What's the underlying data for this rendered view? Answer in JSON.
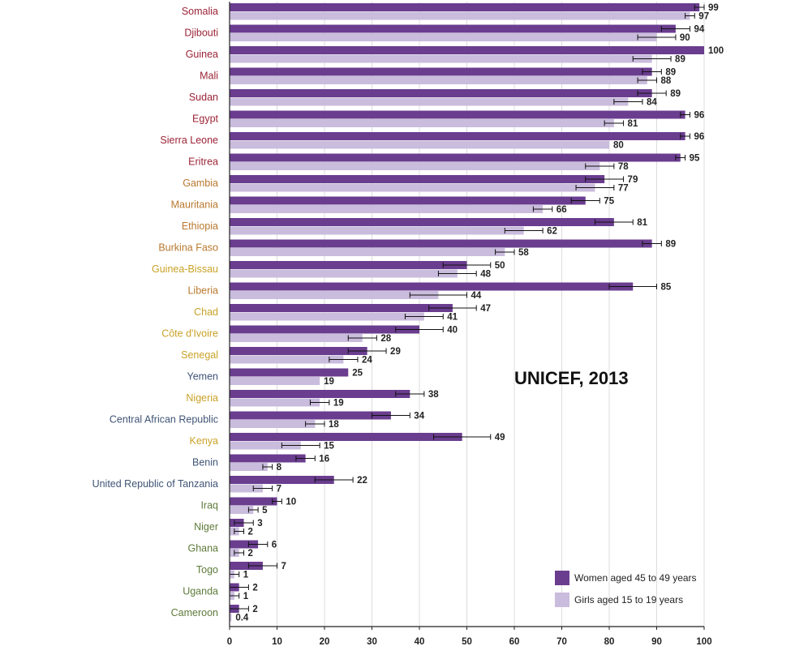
{
  "chart_data": {
    "type": "bar",
    "orientation": "horizontal",
    "source_note": "UNICEF, 2013",
    "categories": [
      "Somalia",
      "Djibouti",
      "Guinea",
      "Mali",
      "Sudan",
      "Egypt",
      "Sierra Leone",
      "Eritrea",
      "Gambia",
      "Mauritania",
      "Ethiopia",
      "Burkina Faso",
      "Guinea-Bissau",
      "Liberia",
      "Chad",
      "Côte d'Ivoire",
      "Senegal",
      "Yemen",
      "Nigeria",
      "Central African Republic",
      "Kenya",
      "Benin",
      "United Republic of Tanzania",
      "Iraq",
      "Niger",
      "Ghana",
      "Togo",
      "Uganda",
      "Cameroon"
    ],
    "category_colors": [
      "#9b2335",
      "#9b2335",
      "#9b2335",
      "#9b2335",
      "#9b2335",
      "#9b2335",
      "#9b2335",
      "#9b2335",
      "#b9782e",
      "#b9782e",
      "#b9782e",
      "#b9782e",
      "#c9a227",
      "#b9782e",
      "#c9a227",
      "#c9a227",
      "#c9a227",
      "#3f5475",
      "#c9a227",
      "#3f5475",
      "#c9a227",
      "#3f5475",
      "#3f5475",
      "#5e7a3a",
      "#5e7a3a",
      "#5e7a3a",
      "#5e7a3a",
      "#5e7a3a",
      "#5e7a3a"
    ],
    "series": [
      {
        "name": "Women aged 45 to 49 years",
        "color": "#6a3d8f",
        "values": [
          99,
          94,
          100,
          89,
          89,
          96,
          96,
          95,
          79,
          75,
          81,
          89,
          50,
          85,
          47,
          40,
          29,
          25,
          38,
          34,
          49,
          16,
          22,
          10,
          3,
          6,
          7,
          2,
          2
        ],
        "labels": [
          "99",
          "94",
          "100",
          "89",
          "89",
          "96",
          "96",
          "95",
          "79",
          "75",
          "81",
          "89",
          "50",
          "85",
          "47",
          "40",
          "29",
          "25",
          "38",
          "34",
          "49",
          "16",
          "22",
          "10",
          "3",
          "6",
          "7",
          "2",
          "2"
        ],
        "err": [
          1,
          3,
          0,
          2,
          3,
          1,
          1,
          1,
          4,
          3,
          4,
          2,
          5,
          5,
          5,
          5,
          4,
          0,
          3,
          4,
          6,
          2,
          4,
          1,
          2,
          2,
          3,
          2,
          2
        ]
      },
      {
        "name": "Girls aged 15 to 19 years",
        "color": "#c9bcdc",
        "values": [
          97,
          90,
          89,
          88,
          84,
          81,
          80,
          78,
          77,
          66,
          62,
          58,
          48,
          44,
          41,
          28,
          24,
          19,
          19,
          18,
          15,
          8,
          7,
          5,
          2,
          2,
          1,
          1,
          0.4
        ],
        "labels": [
          "97",
          "90",
          "89",
          "88",
          "84",
          "81",
          "80",
          "78",
          "77",
          "66",
          "62",
          "58",
          "48",
          "44",
          "41",
          "28",
          "24",
          "19",
          "19",
          "18",
          "15",
          "8",
          "7",
          "5",
          "2",
          "2",
          "1",
          "1",
          "0.4"
        ],
        "err": [
          1,
          4,
          4,
          2,
          3,
          2,
          0,
          3,
          4,
          2,
          4,
          2,
          4,
          6,
          4,
          3,
          3,
          0,
          2,
          2,
          4,
          1,
          2,
          1,
          1,
          1,
          1,
          1,
          0
        ]
      }
    ],
    "xlim": [
      0,
      100
    ],
    "xticks": [
      "0",
      "10",
      "20",
      "30",
      "40",
      "50",
      "60",
      "70",
      "80",
      "90",
      "100"
    ],
    "grid": true,
    "legend_position": "bottom-right"
  }
}
